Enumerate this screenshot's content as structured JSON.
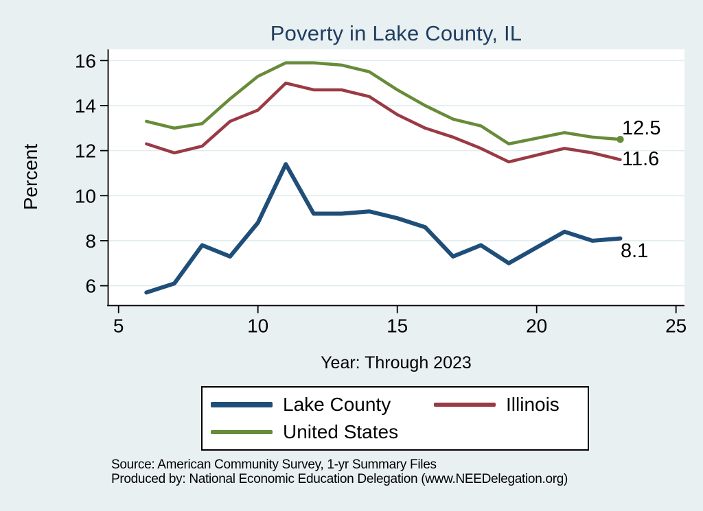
{
  "title": "Poverty in Lake County, IL",
  "chart_data": {
    "type": "line",
    "title": "Poverty in Lake County, IL",
    "xlabel": "Year: Through 2023",
    "ylabel": "Percent",
    "x": [
      6,
      7,
      8,
      9,
      10,
      11,
      12,
      13,
      14,
      15,
      16,
      17,
      18,
      19,
      20,
      21,
      22,
      23
    ],
    "series": [
      {
        "name": "Lake County",
        "color": "#1f4e79",
        "width": 6,
        "end_label": "8.1",
        "end_marker": false,
        "values": [
          5.7,
          6.1,
          7.8,
          7.3,
          8.8,
          11.4,
          9.2,
          9.2,
          9.3,
          9.0,
          8.6,
          7.3,
          7.8,
          7.0,
          7.7,
          8.4,
          8.0,
          8.1
        ]
      },
      {
        "name": "Illinois",
        "color": "#9a3a44",
        "width": 4.5,
        "end_label": "11.6",
        "end_marker": false,
        "values": [
          12.3,
          11.9,
          12.2,
          13.3,
          13.8,
          15.0,
          14.7,
          14.7,
          14.4,
          13.6,
          13.0,
          12.6,
          12.1,
          11.5,
          11.8,
          12.1,
          11.9,
          11.6
        ]
      },
      {
        "name": "United States",
        "color": "#678b38",
        "width": 4.5,
        "end_label": "12.5",
        "end_marker": true,
        "values": [
          13.3,
          13.0,
          13.2,
          14.3,
          15.3,
          15.9,
          15.9,
          15.8,
          15.5,
          14.7,
          14.0,
          13.4,
          13.1,
          12.3,
          12.55,
          12.8,
          12.6,
          12.5
        ]
      }
    ],
    "xticks": [
      5,
      10,
      15,
      20,
      25
    ],
    "yticks": [
      6,
      8,
      10,
      12,
      14,
      16
    ],
    "xlim": [
      4.6,
      25.3
    ],
    "ylim": [
      5.1,
      16.5
    ],
    "grid": "horizontal-only",
    "legend_position": "bottom-center"
  },
  "annotations": {
    "us_end": "12.5",
    "il_end": "11.6",
    "lake_end": "8.1"
  },
  "legend": {
    "items": [
      {
        "label": "Lake County",
        "color": "#1f4e79"
      },
      {
        "label": "Illinois",
        "color": "#9a3a44"
      },
      {
        "label": "United States",
        "color": "#678b38"
      }
    ]
  },
  "notes": {
    "line1": "Source: American Community Survey, 1-yr Summary Files",
    "line2": "Produced by: National Economic Education Delegation (www.NEEDelegation.org)"
  },
  "colors": {
    "background": "#e9f0f2",
    "plot_background": "#ffffff",
    "grid": "#e1ecef",
    "axis": "#000000",
    "title": "#1e3d5f"
  }
}
